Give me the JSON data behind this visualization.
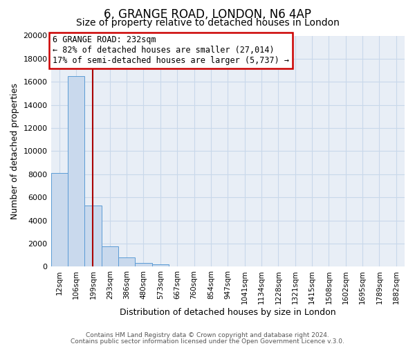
{
  "title": "6, GRANGE ROAD, LONDON, N6 4AP",
  "subtitle": "Size of property relative to detached houses in London",
  "xlabel": "Distribution of detached houses by size in London",
  "ylabel": "Number of detached properties",
  "bar_labels": [
    "12sqm",
    "106sqm",
    "199sqm",
    "293sqm",
    "386sqm",
    "480sqm",
    "573sqm",
    "667sqm",
    "760sqm",
    "854sqm",
    "947sqm",
    "1041sqm",
    "1134sqm",
    "1228sqm",
    "1321sqm",
    "1415sqm",
    "1508sqm",
    "1602sqm",
    "1695sqm",
    "1789sqm",
    "1882sqm"
  ],
  "bar_values": [
    8100,
    16500,
    5300,
    1750,
    800,
    300,
    200,
    0,
    0,
    0,
    0,
    0,
    0,
    0,
    0,
    0,
    0,
    0,
    0,
    0,
    0
  ],
  "bar_color": "#c9d9ed",
  "bar_edge_color": "#5b9bd5",
  "grid_color": "#c8d8ea",
  "background_color": "#e8eef6",
  "ylim": [
    0,
    20000
  ],
  "yticks": [
    0,
    2000,
    4000,
    6000,
    8000,
    10000,
    12000,
    14000,
    16000,
    18000,
    20000
  ],
  "vline_x": 2.5,
  "vline_color": "#aa0000",
  "annotation_title": "6 GRANGE ROAD: 232sqm",
  "annotation_line1": "← 82% of detached houses are smaller (27,014)",
  "annotation_line2": "17% of semi-detached houses are larger (5,737) →",
  "annotation_box_edge": "#cc0000",
  "footer_line1": "Contains HM Land Registry data © Crown copyright and database right 2024.",
  "footer_line2": "Contains public sector information licensed under the Open Government Licence v.3.0.",
  "title_fontsize": 12,
  "subtitle_fontsize": 10
}
